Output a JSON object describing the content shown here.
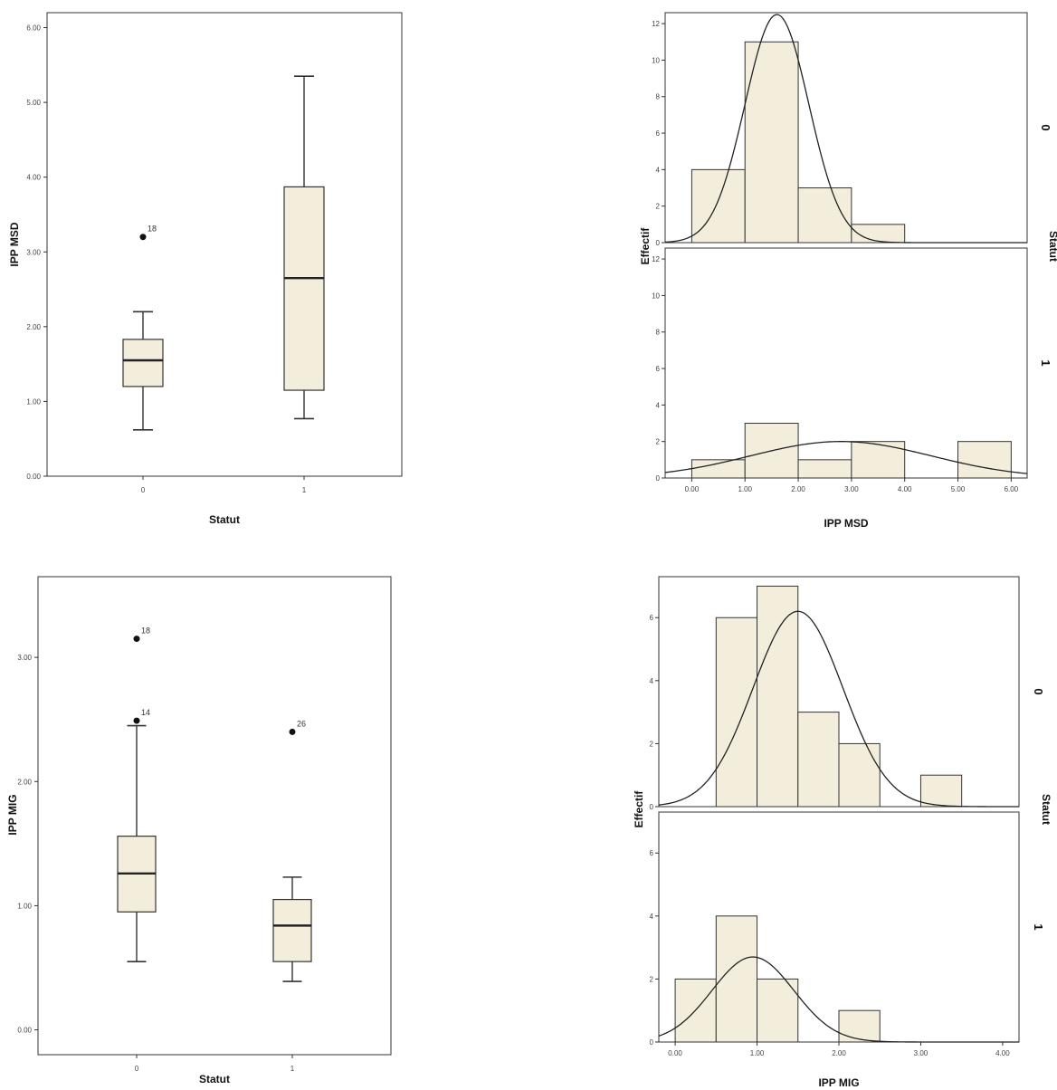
{
  "chart_data": [
    {
      "type": "boxplot",
      "xlabel": "Statut",
      "ylabel": "IPP MSD",
      "categories": [
        "0",
        "1"
      ],
      "ylim": [
        0,
        6.2
      ],
      "yticks": [
        "0.00",
        "1.00",
        "2.00",
        "3.00",
        "4.00",
        "5.00",
        "6.00"
      ],
      "yticks_values": [
        0,
        1,
        2,
        3,
        4,
        5,
        6
      ],
      "boxes": [
        {
          "category": "0",
          "min": 0.62,
          "q1": 1.2,
          "median": 1.55,
          "q3": 1.83,
          "max": 2.2,
          "outliers": [
            {
              "value": 3.2,
              "label": "18"
            }
          ]
        },
        {
          "category": "1",
          "min": 0.77,
          "q1": 1.15,
          "median": 2.65,
          "q3": 3.87,
          "max": 5.35,
          "outliers": []
        }
      ]
    },
    {
      "type": "histogram",
      "xlabel": "IPP MSD",
      "ylabel": "Effectif",
      "facet_label": "Statut",
      "xlim": [
        -0.5,
        6.3
      ],
      "xticks": [
        "0.00",
        "1.00",
        "2.00",
        "3.00",
        "4.00",
        "5.00",
        "6.00"
      ],
      "xticks_values": [
        0,
        1,
        2,
        3,
        4,
        5,
        6
      ],
      "ylim": [
        0,
        12.6
      ],
      "yticks_values": [
        0,
        2,
        4,
        6,
        8,
        10,
        12
      ],
      "yticks": [
        "0",
        "2",
        "4",
        "6",
        "8",
        "10",
        "12"
      ],
      "panels": [
        {
          "label": "0",
          "bin_edges": [
            0,
            1,
            2,
            3,
            4
          ],
          "counts": [
            4,
            11,
            3,
            1
          ],
          "normal_curve": {
            "mean": 1.6,
            "sd": 0.6,
            "peak": 12.5
          }
        },
        {
          "label": "1",
          "bin_edges": [
            0,
            1,
            2,
            3,
            4,
            5,
            6
          ],
          "counts": [
            1,
            3,
            1,
            2,
            0,
            2
          ],
          "normal_curve": {
            "mean": 2.8,
            "sd": 1.7,
            "peak": 2.0
          }
        }
      ]
    },
    {
      "type": "boxplot",
      "xlabel": "Statut",
      "ylabel": "IPP MIG",
      "categories": [
        "0",
        "1"
      ],
      "ylim": [
        -0.2,
        3.65
      ],
      "yticks": [
        "0.00",
        "1.00",
        "2.00",
        "3.00"
      ],
      "yticks_values": [
        0,
        1,
        2,
        3
      ],
      "boxes": [
        {
          "category": "0",
          "min": 0.55,
          "q1": 0.95,
          "median": 1.26,
          "q3": 1.56,
          "max": 2.45,
          "outliers": [
            {
              "value": 3.15,
              "label": "18"
            },
            {
              "value": 2.49,
              "label": "14"
            }
          ]
        },
        {
          "category": "1",
          "min": 0.39,
          "q1": 0.55,
          "median": 0.84,
          "q3": 1.05,
          "max": 1.23,
          "outliers": [
            {
              "value": 2.4,
              "label": "26"
            }
          ]
        }
      ]
    },
    {
      "type": "histogram",
      "xlabel": "IPP MIG",
      "ylabel": "Effectif",
      "facet_label": "Statut",
      "xlim": [
        -0.2,
        4.2
      ],
      "xticks": [
        "0.00",
        "1.00",
        "2.00",
        "3.00",
        "4.00"
      ],
      "xticks_values": [
        0,
        1,
        2,
        3,
        4
      ],
      "ylim": [
        0,
        7.3
      ],
      "yticks_values": [
        0,
        2,
        4,
        6
      ],
      "yticks": [
        "0",
        "2",
        "4",
        "6"
      ],
      "panels": [
        {
          "label": "0",
          "bin_edges": [
            0.5,
            1.0,
            1.5,
            2.0,
            2.5,
            3.0,
            3.5
          ],
          "counts": [
            6,
            7,
            3,
            2,
            0,
            1
          ],
          "normal_curve": {
            "mean": 1.5,
            "sd": 0.55,
            "peak": 6.2
          }
        },
        {
          "label": "1",
          "bin_edges": [
            0,
            0.5,
            1.0,
            1.5,
            2.0,
            2.5
          ],
          "counts": [
            2,
            4,
            2,
            0,
            1
          ],
          "normal_curve": {
            "mean": 0.95,
            "sd": 0.5,
            "peak": 2.7
          }
        }
      ]
    }
  ]
}
